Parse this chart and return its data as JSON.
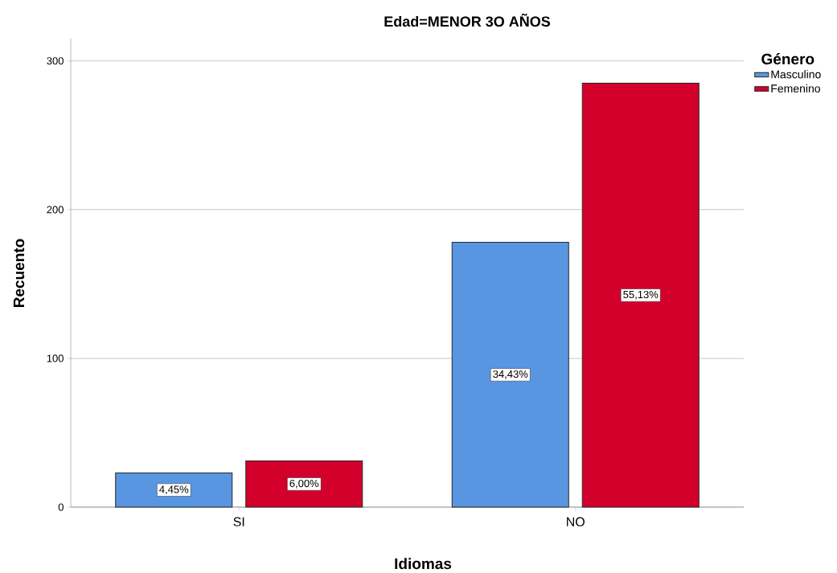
{
  "chart_data": {
    "type": "bar",
    "title": "Edad=MENOR 3O AÑOS",
    "xlabel": "Idiomas",
    "ylabel": "Recuento",
    "legend_title": "Género",
    "categories": [
      "SI",
      "NO"
    ],
    "series": [
      {
        "name": "Masculino",
        "color": "#5896e2",
        "values": [
          23,
          178
        ]
      },
      {
        "name": "Femenino",
        "color": "#d3002c",
        "values": [
          31,
          285
        ]
      }
    ],
    "annotations": [
      "4,45%",
      "34,43%",
      "6,00%",
      "55,13%"
    ],
    "ylim": [
      0,
      315
    ],
    "yticks": [
      0,
      100,
      200,
      300
    ],
    "grid": "y",
    "legend": "top right"
  }
}
